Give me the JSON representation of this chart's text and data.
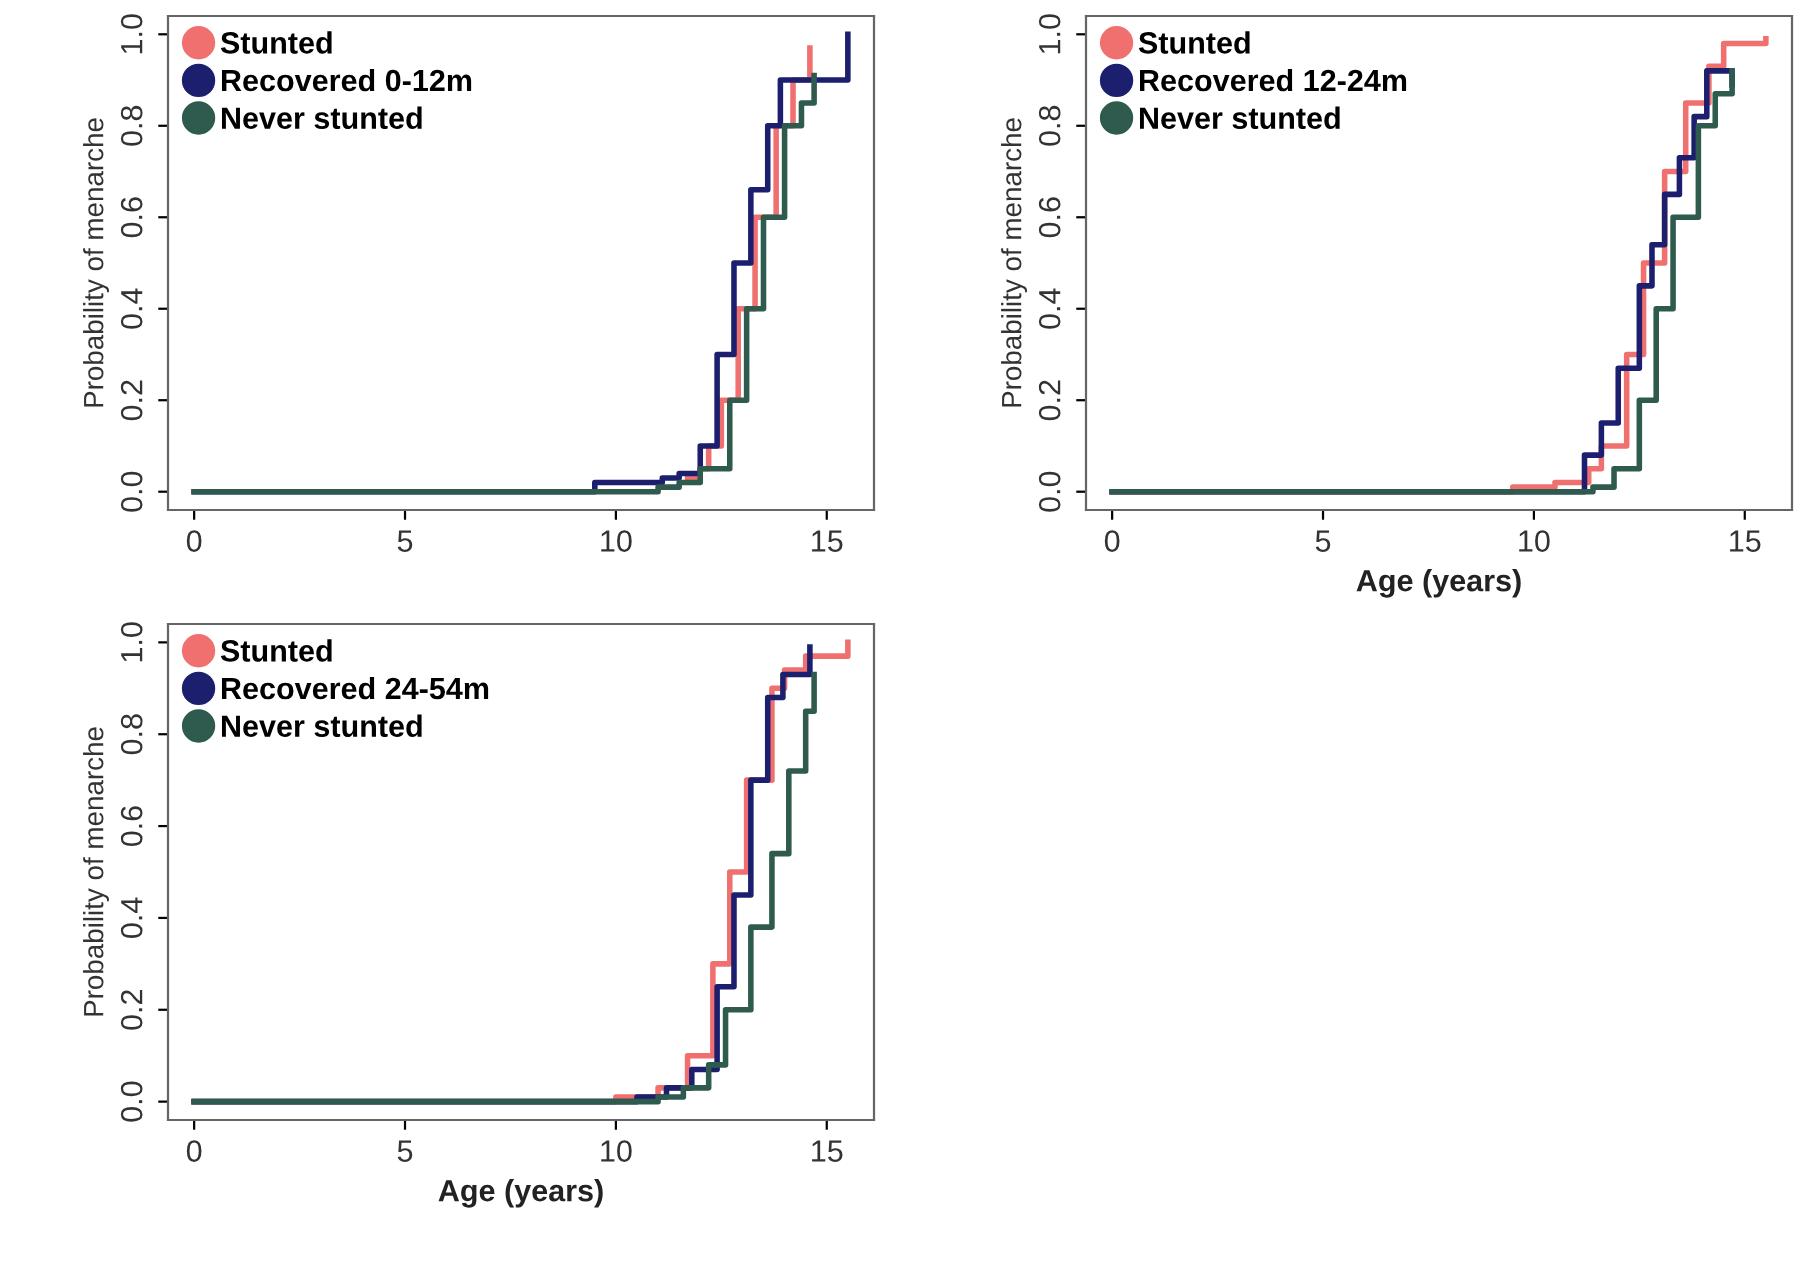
{
  "chart_data": [
    {
      "type": "step",
      "ylabel": "Probability of menarche",
      "xlim": [
        -0.62,
        16.12
      ],
      "ylim": [
        -0.04,
        1.04
      ],
      "xticks": [
        0,
        5,
        10,
        15
      ],
      "yticks": [
        {
          "value": 0,
          "label": "0.0"
        },
        {
          "value": 0.2,
          "label": "0.2"
        },
        {
          "value": 0.4,
          "label": "0.4"
        },
        {
          "value": 0.6,
          "label": "0.6"
        },
        {
          "value": 0.8,
          "label": "0.8"
        },
        {
          "value": 1,
          "label": "1.0"
        }
      ],
      "legend": "top left",
      "grid": false,
      "marker": "none",
      "series": [
        {
          "name": "Stunted",
          "color": "#f07070",
          "x": [
            11.7,
            12.0,
            12.2,
            12.5,
            12.9,
            13.3,
            13.8,
            14.2,
            14.6
          ],
          "values": [
            0.03,
            0.05,
            0.1,
            0.2,
            0.4,
            0.6,
            0.8,
            0.9,
            0.97
          ]
        },
        {
          "name": "Recovered 0-12m",
          "color": "#1c1f6e",
          "x": [
            0,
            9.5,
            11.1,
            11.5,
            12.0,
            12.4,
            12.8,
            13.2,
            13.6,
            13.9,
            15.5
          ],
          "values": [
            0,
            0.02,
            0.03,
            0.04,
            0.1,
            0.3,
            0.5,
            0.66,
            0.8,
            0.9,
            1.0
          ]
        },
        {
          "name": "Never stunted",
          "color": "#2f5a4e",
          "x": [
            0,
            11.0,
            11.5,
            12.0,
            12.7,
            13.1,
            13.5,
            14.0,
            14.4,
            14.7
          ],
          "values": [
            0,
            0.01,
            0.02,
            0.05,
            0.2,
            0.4,
            0.6,
            0.8,
            0.85,
            0.91
          ]
        }
      ]
    },
    {
      "type": "step",
      "xlabel": "Age (years)",
      "ylabel": "Probability of menarche",
      "xlim": [
        -0.62,
        16.12
      ],
      "ylim": [
        -0.04,
        1.04
      ],
      "xticks": [
        0,
        5,
        10,
        15
      ],
      "yticks": [
        {
          "value": 0,
          "label": "0.0"
        },
        {
          "value": 0.2,
          "label": "0.2"
        },
        {
          "value": 0.4,
          "label": "0.4"
        },
        {
          "value": 0.6,
          "label": "0.6"
        },
        {
          "value": 0.8,
          "label": "0.8"
        },
        {
          "value": 1,
          "label": "1.0"
        }
      ],
      "legend": "top left",
      "grid": false,
      "marker": "none",
      "series": [
        {
          "name": "Stunted",
          "color": "#f07070",
          "x": [
            0,
            9.5,
            10.5,
            11.3,
            11.6,
            12.2,
            12.6,
            13.1,
            13.6,
            14.15,
            14.5,
            15.5
          ],
          "values": [
            0,
            0.01,
            0.02,
            0.05,
            0.1,
            0.3,
            0.5,
            0.7,
            0.85,
            0.93,
            0.98,
            0.99
          ]
        },
        {
          "name": "Recovered 12-24m",
          "color": "#1c1f6e",
          "x": [
            0,
            11.2,
            11.6,
            12.0,
            12.5,
            12.8,
            13.1,
            13.45,
            13.8,
            14.1,
            14.7
          ],
          "values": [
            0,
            0.08,
            0.15,
            0.27,
            0.45,
            0.54,
            0.65,
            0.73,
            0.82,
            0.92,
            0.89
          ]
        },
        {
          "name": "Never stunted",
          "color": "#2f5a4e",
          "x": [
            0,
            11.4,
            11.9,
            12.5,
            12.9,
            13.3,
            13.9,
            14.3,
            14.7
          ],
          "values": [
            0,
            0.01,
            0.05,
            0.2,
            0.4,
            0.6,
            0.8,
            0.87,
            0.92
          ]
        }
      ]
    },
    {
      "type": "step",
      "xlabel": "Age (years)",
      "ylabel": "Probability of menarche",
      "xlim": [
        -0.62,
        16.12
      ],
      "ylim": [
        -0.04,
        1.04
      ],
      "xticks": [
        0,
        5,
        10,
        15
      ],
      "yticks": [
        {
          "value": 0,
          "label": "0.0"
        },
        {
          "value": 0.2,
          "label": "0.2"
        },
        {
          "value": 0.4,
          "label": "0.4"
        },
        {
          "value": 0.6,
          "label": "0.6"
        },
        {
          "value": 0.8,
          "label": "0.8"
        },
        {
          "value": 1,
          "label": "1.0"
        }
      ],
      "legend": "top left",
      "grid": false,
      "marker": "none",
      "series": [
        {
          "name": "Stunted",
          "color": "#f07070",
          "x": [
            0,
            10.0,
            11.0,
            11.7,
            12.3,
            12.7,
            13.1,
            13.7,
            14.0,
            14.5,
            15.5
          ],
          "values": [
            0,
            0.01,
            0.03,
            0.1,
            0.3,
            0.5,
            0.7,
            0.9,
            0.94,
            0.97,
            1.0
          ]
        },
        {
          "name": "Recovered 24-54m",
          "color": "#1c1f6e",
          "x": [
            0,
            10.5,
            11.2,
            11.8,
            12.4,
            12.8,
            13.2,
            13.6,
            13.96,
            14.6
          ],
          "values": [
            0,
            0.01,
            0.03,
            0.07,
            0.25,
            0.45,
            0.7,
            0.88,
            0.93,
            0.99
          ]
        },
        {
          "name": "Never stunted",
          "color": "#2f5a4e",
          "x": [
            0,
            11.0,
            11.6,
            12.2,
            12.6,
            13.2,
            13.7,
            14.1,
            14.5,
            14.7
          ],
          "values": [
            0,
            0.01,
            0.03,
            0.08,
            0.2,
            0.38,
            0.54,
            0.72,
            0.85,
            0.93
          ]
        }
      ]
    }
  ]
}
